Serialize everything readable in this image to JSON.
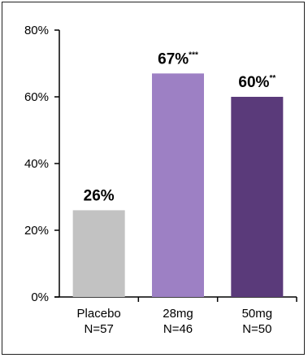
{
  "chart_data": {
    "type": "bar",
    "categories": [
      "Placebo\nN=57",
      "28mg\nN=46",
      "50mg\nN=50"
    ],
    "values": [
      26,
      67,
      60
    ],
    "data_labels": [
      "26%",
      "67%",
      "60%"
    ],
    "data_label_suffixes": [
      "",
      "***",
      "**"
    ],
    "colors": [
      "#c2c2c2",
      "#9d80c4",
      "#5a3a7a"
    ],
    "ylim": [
      0,
      80
    ],
    "yticks": [
      0,
      20,
      40,
      60,
      80
    ],
    "ytick_labels": [
      "0%",
      "20%",
      "40%",
      "60%",
      "80%"
    ],
    "title": "",
    "xlabel": "",
    "ylabel": "",
    "grid": false,
    "legend": "none"
  }
}
